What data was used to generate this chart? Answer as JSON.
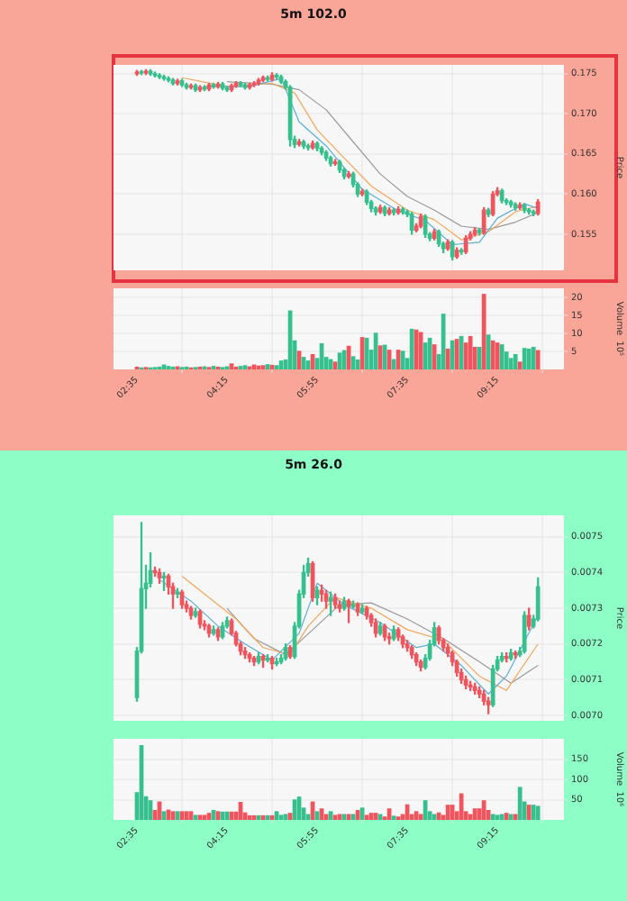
{
  "chart_data": [
    {
      "type": "candlestick",
      "title": "5m 102.0",
      "ylabel": "Price",
      "grid": true,
      "tick_labels": "y",
      "xlim": [
        2.15,
        10.48
      ],
      "xticks": [
        {
          "value": 2.5833,
          "label": null
        },
        {
          "value": 4.25,
          "label": null
        },
        {
          "value": 5.9167,
          "label": null
        },
        {
          "value": 7.5833,
          "label": null
        },
        {
          "value": 9.25,
          "label": null
        }
      ],
      "ylim": [
        0.1505,
        0.1761
      ],
      "yticks": [
        0.155,
        {
          "value": 0.16,
          "label": "0.160"
        },
        0.165,
        {
          "value": 0.17,
          "label": "0.170"
        },
        0.175
      ],
      "x": [
        2.5833,
        2.6667,
        2.75,
        2.8333,
        2.9167,
        3,
        3.0833,
        3.1667,
        3.25,
        3.3333,
        3.4167,
        3.5,
        3.5833,
        3.6667,
        3.75,
        3.8333,
        3.9167,
        4,
        4.0833,
        4.1667,
        4.25,
        4.3333,
        4.4167,
        4.5,
        4.5833,
        4.6667,
        4.75,
        4.8333,
        4.9167,
        5,
        5.0833,
        5.1667,
        5.25,
        5.3333,
        5.4167,
        5.5,
        5.5833,
        5.6667,
        5.75,
        5.8333,
        5.9167,
        6,
        6.0833,
        6.1667,
        6.25,
        6.3333,
        6.4167,
        6.5,
        6.5833,
        6.6667,
        6.75,
        6.8333,
        6.9167,
        7,
        7.0833,
        7.1667,
        7.25,
        7.3333,
        7.4167,
        7.5,
        7.5833,
        7.6667,
        7.75,
        7.8333,
        7.9167,
        8,
        8.0833,
        8.1667,
        8.25,
        8.3333,
        8.4167,
        8.5,
        8.5833,
        8.6667,
        8.75,
        8.8333,
        8.9167,
        9,
        9.0833,
        9.1667,
        9.25,
        9.3333,
        9.4167,
        9.5,
        9.5833,
        9.6667,
        9.75,
        9.8333,
        9.9167,
        10
      ],
      "ohlc": [
        [
          0.175,
          0.1754,
          0.1748,
          0.1752
        ],
        [
          0.1752,
          0.1754,
          0.1749,
          0.1751
        ],
        [
          0.1751,
          0.1755,
          0.1749,
          0.1753
        ],
        [
          0.1753,
          0.1755,
          0.1748,
          0.175
        ],
        [
          0.175,
          0.1752,
          0.1746,
          0.1748
        ],
        [
          0.1748,
          0.175,
          0.1744,
          0.1746
        ],
        [
          0.1746,
          0.1748,
          0.1742,
          0.1744
        ],
        [
          0.1744,
          0.1746,
          0.174,
          0.1742
        ],
        [
          0.1742,
          0.1744,
          0.1736,
          0.1738
        ],
        [
          0.1738,
          0.1743,
          0.1736,
          0.1741
        ],
        [
          0.1741,
          0.1743,
          0.1734,
          0.1736
        ],
        [
          0.1736,
          0.1738,
          0.1731,
          0.1733
        ],
        [
          0.1733,
          0.1737,
          0.1731,
          0.1735
        ],
        [
          0.1735,
          0.1737,
          0.1728,
          0.173
        ],
        [
          0.173,
          0.1735,
          0.1728,
          0.1733
        ],
        [
          0.1733,
          0.1735,
          0.1729,
          0.1731
        ],
        [
          0.1731,
          0.1738,
          0.1729,
          0.1736
        ],
        [
          0.1736,
          0.1738,
          0.1732,
          0.1734
        ],
        [
          0.1734,
          0.1739,
          0.1732,
          0.1737
        ],
        [
          0.1737,
          0.1739,
          0.173,
          0.1732
        ],
        [
          0.1732,
          0.1734,
          0.1728,
          0.173
        ],
        [
          0.173,
          0.1737,
          0.1728,
          0.1735
        ],
        [
          0.1735,
          0.174,
          0.1733,
          0.1738
        ],
        [
          0.1738,
          0.174,
          0.1734,
          0.1736
        ],
        [
          0.1736,
          0.1738,
          0.1731,
          0.1733
        ],
        [
          0.1733,
          0.1738,
          0.1731,
          0.1736
        ],
        [
          0.1736,
          0.174,
          0.1734,
          0.1738
        ],
        [
          0.1738,
          0.1744,
          0.1736,
          0.1742
        ],
        [
          0.1742,
          0.1747,
          0.174,
          0.1745
        ],
        [
          0.1745,
          0.1747,
          0.1741,
          0.1743
        ],
        [
          0.1743,
          0.1751,
          0.1741,
          0.1748
        ],
        [
          0.1748,
          0.175,
          0.1744,
          0.1746
        ],
        [
          0.1746,
          0.1748,
          0.1738,
          0.174
        ],
        [
          0.174,
          0.1742,
          0.1731,
          0.1733
        ],
        [
          0.1733,
          0.1735,
          0.166,
          0.1668
        ],
        [
          0.1668,
          0.1672,
          0.1658,
          0.1662
        ],
        [
          0.1662,
          0.1668,
          0.166,
          0.1665
        ],
        [
          0.1665,
          0.1667,
          0.1657,
          0.166
        ],
        [
          0.166,
          0.1662,
          0.1655,
          0.1658
        ],
        [
          0.1658,
          0.1666,
          0.1656,
          0.1663
        ],
        [
          0.1663,
          0.1665,
          0.1654,
          0.1657
        ],
        [
          0.1657,
          0.1659,
          0.1649,
          0.1652
        ],
        [
          0.1652,
          0.1654,
          0.1642,
          0.1645
        ],
        [
          0.1645,
          0.1647,
          0.1635,
          0.1638
        ],
        [
          0.1638,
          0.1643,
          0.1636,
          0.164
        ],
        [
          0.164,
          0.1642,
          0.1627,
          0.163
        ],
        [
          0.163,
          0.1632,
          0.1619,
          0.1622
        ],
        [
          0.1622,
          0.1628,
          0.162,
          0.1625
        ],
        [
          0.1625,
          0.1627,
          0.1609,
          0.1612
        ],
        [
          0.1612,
          0.1614,
          0.1597,
          0.16
        ],
        [
          0.16,
          0.1606,
          0.1598,
          0.1603
        ],
        [
          0.1603,
          0.1605,
          0.1587,
          0.159
        ],
        [
          0.159,
          0.1592,
          0.1578,
          0.1582
        ],
        [
          0.1582,
          0.1584,
          0.1574,
          0.1578
        ],
        [
          0.1578,
          0.1586,
          0.1576,
          0.1583
        ],
        [
          0.1583,
          0.1585,
          0.1573,
          0.1576
        ],
        [
          0.1576,
          0.1583,
          0.1574,
          0.158
        ],
        [
          0.158,
          0.1582,
          0.1574,
          0.1577
        ],
        [
          0.1577,
          0.1584,
          0.1575,
          0.1581
        ],
        [
          0.1581,
          0.1583,
          0.1575,
          0.1578
        ],
        [
          0.1578,
          0.158,
          0.1572,
          0.1575
        ],
        [
          0.1575,
          0.1577,
          0.155,
          0.1555
        ],
        [
          0.1555,
          0.1563,
          0.1553,
          0.156
        ],
        [
          0.156,
          0.1575,
          0.1558,
          0.1572
        ],
        [
          0.1572,
          0.1574,
          0.1546,
          0.155
        ],
        [
          0.155,
          0.1552,
          0.1542,
          0.1545
        ],
        [
          0.1545,
          0.1556,
          0.1543,
          0.1553
        ],
        [
          0.1553,
          0.1555,
          0.1535,
          0.1538
        ],
        [
          0.1538,
          0.154,
          0.1527,
          0.1532
        ],
        [
          0.1532,
          0.1543,
          0.153,
          0.154
        ],
        [
          0.154,
          0.1542,
          0.1518,
          0.1522
        ],
        [
          0.1522,
          0.1533,
          0.152,
          0.153
        ],
        [
          0.153,
          0.1532,
          0.1525,
          0.1528
        ],
        [
          0.1528,
          0.1548,
          0.1526,
          0.1545
        ],
        [
          0.1545,
          0.1553,
          0.1543,
          0.155
        ],
        [
          0.155,
          0.1558,
          0.1548,
          0.1555
        ],
        [
          0.1555,
          0.1557,
          0.1549,
          0.1552
        ],
        [
          0.1552,
          0.1583,
          0.155,
          0.158
        ],
        [
          0.158,
          0.1582,
          0.1572,
          0.1575
        ],
        [
          0.1575,
          0.1603,
          0.1573,
          0.16
        ],
        [
          0.16,
          0.1608,
          0.1598,
          0.1604
        ],
        [
          0.1604,
          0.1606,
          0.1589,
          0.1592
        ],
        [
          0.1592,
          0.1594,
          0.1587,
          0.159
        ],
        [
          0.159,
          0.1592,
          0.1584,
          0.1587
        ],
        [
          0.1587,
          0.1589,
          0.158,
          0.1583
        ],
        [
          0.1583,
          0.1589,
          0.1581,
          0.1586
        ],
        [
          0.1586,
          0.1588,
          0.1577,
          0.158
        ],
        [
          0.158,
          0.1582,
          0.1575,
          0.1578
        ],
        [
          0.1578,
          0.158,
          0.1573,
          0.1576
        ],
        [
          0.1576,
          0.1593,
          0.1574,
          0.159
        ]
      ],
      "colors": [
        "#f2545e",
        "#35c08e",
        "#f2545e",
        "#35c08e",
        "#35c08e",
        "#35c08e",
        "#35c08e",
        "#35c08e",
        "#35c08e",
        "#f2545e",
        "#35c08e",
        "#35c08e",
        "#f2545e",
        "#35c08e",
        "#f2545e",
        "#35c08e",
        "#f2545e",
        "#35c08e",
        "#f2545e",
        "#35c08e",
        "#35c08e",
        "#f2545e",
        "#f2545e",
        "#35c08e",
        "#35c08e",
        "#f2545e",
        "#f2545e",
        "#f2545e",
        "#f2545e",
        "#35c08e",
        "#f2545e",
        "#35c08e",
        "#35c08e",
        "#35c08e",
        "#35c08e",
        "#35c08e",
        "#f2545e",
        "#35c08e",
        "#35c08e",
        "#f2545e",
        "#35c08e",
        "#35c08e",
        "#35c08e",
        "#35c08e",
        "#f2545e",
        "#35c08e",
        "#35c08e",
        "#f2545e",
        "#35c08e",
        "#35c08e",
        "#f2545e",
        "#35c08e",
        "#35c08e",
        "#35c08e",
        "#f2545e",
        "#35c08e",
        "#f2545e",
        "#35c08e",
        "#f2545e",
        "#35c08e",
        "#35c08e",
        "#35c08e",
        "#f2545e",
        "#f2545e",
        "#35c08e",
        "#35c08e",
        "#f2545e",
        "#35c08e",
        "#35c08e",
        "#f2545e",
        "#35c08e",
        "#f2545e",
        "#35c08e",
        "#f2545e",
        "#f2545e",
        "#f2545e",
        "#35c08e",
        "#f2545e",
        "#35c08e",
        "#f2545e",
        "#f2545e",
        "#35c08e",
        "#35c08e",
        "#35c08e",
        "#35c08e",
        "#f2545e",
        "#35c08e",
        "#35c08e",
        "#35c08e",
        "#f2545e"
      ],
      "series": [
        {
          "type": "line",
          "color": "#5aaed6",
          "x": [
            3.8333,
            4.6667,
            5.25,
            5.5833,
            6.0833,
            6.75,
            7.4167,
            7.9167,
            8.4167,
            8.9167,
            9.25,
            9.75,
            10
          ],
          "values": [
            0.1734,
            0.1734,
            0.1744,
            0.169,
            0.166,
            0.1606,
            0.1579,
            0.1567,
            0.1537,
            0.154,
            0.157,
            0.1588,
            0.1582
          ]
        },
        {
          "type": "line",
          "color": "#f2a65a",
          "x": [
            3.4167,
            4.25,
            5.0833,
            5.5,
            5.9167,
            6.4167,
            6.9167,
            7.5833,
            8.0833,
            8.5833,
            9.0833,
            9.5833,
            10
          ],
          "values": [
            0.1745,
            0.1734,
            0.1738,
            0.1726,
            0.168,
            0.1645,
            0.161,
            0.158,
            0.1568,
            0.1543,
            0.1553,
            0.1578,
            0.1585
          ]
        },
        {
          "type": "line",
          "color": "#9a9a9a",
          "x": [
            4.25,
            5.0833,
            5.5833,
            6.0833,
            6.5833,
            7.0833,
            7.5833,
            8.0833,
            8.5833,
            9.0833,
            9.5833,
            10
          ],
          "values": [
            0.174,
            0.1737,
            0.173,
            0.1705,
            0.1665,
            0.1625,
            0.1597,
            0.158,
            0.156,
            0.1556,
            0.1565,
            0.1577
          ]
        }
      ]
    },
    {
      "type": "bar",
      "ylabel": "Volume  10⁵",
      "grid": true,
      "xlim": [
        2.15,
        10.48
      ],
      "xticks": [
        {
          "value": 2.5833,
          "label": "02:35"
        },
        {
          "value": 4.25,
          "label": "04:15"
        },
        {
          "value": 5.9167,
          "label": "05:55"
        },
        {
          "value": 7.5833,
          "label": "07:35"
        },
        {
          "value": 9.25,
          "label": "09:15"
        }
      ],
      "ylim": [
        0,
        22.5
      ],
      "yticks": [
        5,
        10,
        15,
        20
      ],
      "x": [
        2.5833,
        2.6667,
        2.75,
        2.8333,
        2.9167,
        3,
        3.0833,
        3.1667,
        3.25,
        3.3333,
        3.4167,
        3.5,
        3.5833,
        3.6667,
        3.75,
        3.8333,
        3.9167,
        4,
        4.0833,
        4.1667,
        4.25,
        4.3333,
        4.4167,
        4.5,
        4.5833,
        4.6667,
        4.75,
        4.8333,
        4.9167,
        5,
        5.0833,
        5.1667,
        5.25,
        5.3333,
        5.4167,
        5.5,
        5.5833,
        5.6667,
        5.75,
        5.8333,
        5.9167,
        6,
        6.0833,
        6.1667,
        6.25,
        6.3333,
        6.4167,
        6.5,
        6.5833,
        6.6667,
        6.75,
        6.8333,
        6.9167,
        7,
        7.0833,
        7.1667,
        7.25,
        7.3333,
        7.4167,
        7.5,
        7.5833,
        7.6667,
        7.75,
        7.8333,
        7.9167,
        8,
        8.0833,
        8.1667,
        8.25,
        8.3333,
        8.4167,
        8.5,
        8.5833,
        8.6667,
        8.75,
        8.8333,
        8.9167,
        9,
        9.0833,
        9.1667,
        9.25,
        9.3333,
        9.4167,
        9.5,
        9.5833,
        9.6667,
        9.75,
        9.8333,
        9.9167,
        10
      ],
      "values": [
        0.6,
        0.4,
        0.5,
        0.4,
        0.5,
        0.6,
        1.2,
        0.8,
        0.6,
        0.7,
        0.5,
        0.6,
        0.4,
        0.5,
        0.6,
        0.7,
        0.5,
        0.8,
        0.6,
        0.5,
        0.7,
        1.5,
        0.6,
        0.8,
        1.0,
        0.7,
        1.2,
        0.9,
        1.0,
        1.3,
        1.1,
        1.0,
        2.3,
        2.6,
        16.2,
        7.9,
        5,
        3.3,
        2.3,
        4.1,
        3,
        7.1,
        3.3,
        2.7,
        2,
        4.5,
        5.2,
        6.4,
        3.5,
        2.6,
        8.8,
        8.6,
        5.3,
        10,
        6.5,
        6.7,
        5.3,
        2.7,
        5.3,
        5,
        3,
        11.1,
        10.9,
        10.2,
        7.3,
        8.6,
        6.8,
        4.1,
        15.3,
        5.6,
        7.9,
        8.3,
        9.1,
        7.3,
        9.1,
        6.1,
        6.1,
        20.8,
        9.5,
        7.9,
        7.3,
        6.8,
        4.8,
        3,
        4.1,
        2,
        5.8,
        5.6,
        6.1,
        5.2
      ],
      "colors": [
        "#f2545e",
        "#35c08e",
        "#f2545e",
        "#35c08e",
        "#35c08e",
        "#35c08e",
        "#35c08e",
        "#35c08e",
        "#35c08e",
        "#f2545e",
        "#35c08e",
        "#35c08e",
        "#f2545e",
        "#35c08e",
        "#f2545e",
        "#35c08e",
        "#f2545e",
        "#35c08e",
        "#f2545e",
        "#35c08e",
        "#35c08e",
        "#f2545e",
        "#f2545e",
        "#35c08e",
        "#35c08e",
        "#f2545e",
        "#f2545e",
        "#f2545e",
        "#f2545e",
        "#35c08e",
        "#f2545e",
        "#35c08e",
        "#35c08e",
        "#35c08e",
        "#35c08e",
        "#35c08e",
        "#f2545e",
        "#35c08e",
        "#35c08e",
        "#f2545e",
        "#35c08e",
        "#35c08e",
        "#35c08e",
        "#35c08e",
        "#f2545e",
        "#35c08e",
        "#35c08e",
        "#f2545e",
        "#35c08e",
        "#35c08e",
        "#f2545e",
        "#35c08e",
        "#35c08e",
        "#35c08e",
        "#f2545e",
        "#35c08e",
        "#f2545e",
        "#35c08e",
        "#f2545e",
        "#35c08e",
        "#35c08e",
        "#35c08e",
        "#f2545e",
        "#f2545e",
        "#35c08e",
        "#35c08e",
        "#f2545e",
        "#35c08e",
        "#35c08e",
        "#f2545e",
        "#35c08e",
        "#f2545e",
        "#35c08e",
        "#f2545e",
        "#f2545e",
        "#f2545e",
        "#35c08e",
        "#f2545e",
        "#35c08e",
        "#f2545e",
        "#f2545e",
        "#35c08e",
        "#35c08e",
        "#35c08e",
        "#35c08e",
        "#f2545e",
        "#35c08e",
        "#35c08e",
        "#35c08e",
        "#f2545e"
      ]
    },
    {
      "type": "candlestick",
      "title": "5m 26.0",
      "ylabel": "Price",
      "grid": true,
      "tick_labels": "y",
      "xlim": [
        2.15,
        10.48
      ],
      "xticks": [
        {
          "value": 2.5833,
          "label": null
        },
        {
          "value": 4.25,
          "label": null
        },
        {
          "value": 5.9167,
          "label": null
        },
        {
          "value": 7.5833,
          "label": null
        },
        {
          "value": 9.25,
          "label": null
        }
      ],
      "ylim": [
        0.006985,
        0.00756
      ],
      "yticks": [
        {
          "value": 0.007,
          "label": "0.0070"
        },
        0.0071,
        0.0072,
        0.0073,
        0.0074,
        0.0075
      ],
      "x": [
        2.5833,
        2.6667,
        2.75,
        2.8333,
        2.9167,
        3,
        3.0833,
        3.1667,
        3.25,
        3.3333,
        3.4167,
        3.5,
        3.5833,
        3.6667,
        3.75,
        3.8333,
        3.9167,
        4,
        4.0833,
        4.1667,
        4.25,
        4.3333,
        4.4167,
        4.5,
        4.5833,
        4.6667,
        4.75,
        4.8333,
        4.9167,
        5,
        5.0833,
        5.1667,
        5.25,
        5.3333,
        5.4167,
        5.5,
        5.5833,
        5.6667,
        5.75,
        5.8333,
        5.9167,
        6,
        6.0833,
        6.1667,
        6.25,
        6.3333,
        6.4167,
        6.5,
        6.5833,
        6.6667,
        6.75,
        6.8333,
        6.9167,
        7,
        7.0833,
        7.1667,
        7.25,
        7.3333,
        7.4167,
        7.5,
        7.5833,
        7.6667,
        7.75,
        7.8333,
        7.9167,
        8,
        8.0833,
        8.1667,
        8.25,
        8.3333,
        8.4167,
        8.5,
        8.5833,
        8.6667,
        8.75,
        8.8333,
        8.9167,
        9,
        9.0833,
        9.1667,
        9.25,
        9.3333,
        9.4167,
        9.5,
        9.5833,
        9.6667,
        9.75,
        9.8333,
        9.9167,
        10
      ],
      "ohlc": [
        [
          0.00705,
          0.00719,
          0.00704,
          0.00718
        ],
        [
          0.00718,
          0.00754,
          0.007175,
          0.007355
        ],
        [
          0.007355,
          0.00742,
          0.0073,
          0.00737
        ],
        [
          0.00737,
          0.007455,
          0.00736,
          0.007405
        ],
        [
          0.007405,
          0.007415,
          0.00739,
          0.0074
        ],
        [
          0.0074,
          0.00741,
          0.00737,
          0.007385
        ],
        [
          0.007385,
          0.0074,
          0.00735,
          0.00739
        ],
        [
          0.00739,
          0.007395,
          0.00734,
          0.00736
        ],
        [
          0.00736,
          0.00737,
          0.0073,
          0.00734
        ],
        [
          0.00734,
          0.007355,
          0.00733,
          0.007345
        ],
        [
          0.007345,
          0.00735,
          0.0073,
          0.00731
        ],
        [
          0.00731,
          0.00732,
          0.00729,
          0.0073
        ],
        [
          0.0073,
          0.007305,
          0.00727,
          0.00728
        ],
        [
          0.00728,
          0.0073,
          0.007275,
          0.00729
        ],
        [
          0.00729,
          0.007295,
          0.007245,
          0.007255
        ],
        [
          0.007255,
          0.007265,
          0.00724,
          0.00725
        ],
        [
          0.00725,
          0.007255,
          0.00722,
          0.00723
        ],
        [
          0.00723,
          0.00725,
          0.007225,
          0.00724
        ],
        [
          0.00724,
          0.007245,
          0.00721,
          0.00722
        ],
        [
          0.00722,
          0.00726,
          0.007215,
          0.00725
        ],
        [
          0.00725,
          0.007275,
          0.007245,
          0.007265
        ],
        [
          0.007265,
          0.00727,
          0.007225,
          0.00723
        ],
        [
          0.00723,
          0.007235,
          0.007195,
          0.0072
        ],
        [
          0.0072,
          0.007205,
          0.00717,
          0.00718
        ],
        [
          0.00718,
          0.00719,
          0.00716,
          0.00717
        ],
        [
          0.00717,
          0.007175,
          0.00715,
          0.00716
        ],
        [
          0.00716,
          0.007165,
          0.00714,
          0.00715
        ],
        [
          0.00715,
          0.007175,
          0.007145,
          0.007165
        ],
        [
          0.007165,
          0.00717,
          0.007135,
          0.007155
        ],
        [
          0.007155,
          0.00717,
          0.00715,
          0.00716
        ],
        [
          0.00716,
          0.007165,
          0.00713,
          0.007145
        ],
        [
          0.007145,
          0.00716,
          0.00714,
          0.00715
        ],
        [
          0.00715,
          0.00717,
          0.007145,
          0.00716
        ],
        [
          0.00716,
          0.0072,
          0.007155,
          0.00719
        ],
        [
          0.00719,
          0.007195,
          0.00716,
          0.007165
        ],
        [
          0.007165,
          0.00726,
          0.00716,
          0.00725
        ],
        [
          0.00725,
          0.00735,
          0.007245,
          0.00734
        ],
        [
          0.00734,
          0.00742,
          0.00733,
          0.0074
        ],
        [
          0.0074,
          0.00744,
          0.00739,
          0.007425
        ],
        [
          0.007425,
          0.00743,
          0.00732,
          0.00733
        ],
        [
          0.00733,
          0.00736,
          0.00731,
          0.00735
        ],
        [
          0.00735,
          0.007365,
          0.00732,
          0.00734
        ],
        [
          0.00734,
          0.00735,
          0.0073,
          0.00732
        ],
        [
          0.00732,
          0.007345,
          0.00728,
          0.00733
        ],
        [
          0.00733,
          0.00734,
          0.0073,
          0.00731
        ],
        [
          0.00731,
          0.00732,
          0.00729,
          0.0073
        ],
        [
          0.0073,
          0.00733,
          0.007295,
          0.00732
        ],
        [
          0.00732,
          0.007325,
          0.00726,
          0.007305
        ],
        [
          0.007305,
          0.00732,
          0.0073,
          0.00731
        ],
        [
          0.00731,
          0.007315,
          0.00728,
          0.00729
        ],
        [
          0.00729,
          0.00731,
          0.007285,
          0.0073
        ],
        [
          0.0073,
          0.007305,
          0.00727,
          0.00728
        ],
        [
          0.00728,
          0.007285,
          0.00725,
          0.00726
        ],
        [
          0.00726,
          0.00727,
          0.00722,
          0.00723
        ],
        [
          0.00723,
          0.00726,
          0.007225,
          0.00725
        ],
        [
          0.00725,
          0.007255,
          0.00721,
          0.00722
        ],
        [
          0.00722,
          0.00723,
          0.0072,
          0.007215
        ],
        [
          0.007215,
          0.00725,
          0.00721,
          0.00724
        ],
        [
          0.00724,
          0.007245,
          0.00721,
          0.00722
        ],
        [
          0.00722,
          0.007225,
          0.00719,
          0.0072
        ],
        [
          0.0072,
          0.00721,
          0.00718,
          0.00719
        ],
        [
          0.00719,
          0.007195,
          0.00716,
          0.00717
        ],
        [
          0.00717,
          0.007175,
          0.00714,
          0.00715
        ],
        [
          0.00715,
          0.007155,
          0.007125,
          0.007135
        ],
        [
          0.007135,
          0.00717,
          0.00713,
          0.00716
        ],
        [
          0.00716,
          0.00721,
          0.007155,
          0.0072
        ],
        [
          0.0072,
          0.00726,
          0.007195,
          0.007245
        ],
        [
          0.007245,
          0.00725,
          0.0072,
          0.00721
        ],
        [
          0.00721,
          0.007215,
          0.00718,
          0.00719
        ],
        [
          0.00719,
          0.0072,
          0.007165,
          0.007175
        ],
        [
          0.007175,
          0.00718,
          0.00714,
          0.00715
        ],
        [
          0.00715,
          0.007155,
          0.00711,
          0.00712
        ],
        [
          0.00712,
          0.00713,
          0.00709,
          0.0071
        ],
        [
          0.0071,
          0.00711,
          0.007075,
          0.007085
        ],
        [
          0.007085,
          0.007095,
          0.00707,
          0.00708
        ],
        [
          0.00708,
          0.00709,
          0.00706,
          0.00707
        ],
        [
          0.00707,
          0.00708,
          0.00705,
          0.00706
        ],
        [
          0.00706,
          0.00707,
          0.00703,
          0.00704
        ],
        [
          0.00704,
          0.00705,
          0.007005,
          0.00703
        ],
        [
          0.00703,
          0.00714,
          0.007025,
          0.00713
        ],
        [
          0.00713,
          0.007165,
          0.007125,
          0.007155
        ],
        [
          0.007155,
          0.007175,
          0.00715,
          0.007165
        ],
        [
          0.007165,
          0.007175,
          0.00715,
          0.00716
        ],
        [
          0.00716,
          0.007185,
          0.007155,
          0.007175
        ],
        [
          0.007175,
          0.00718,
          0.00716,
          0.00717
        ],
        [
          0.00717,
          0.00719,
          0.007165,
          0.00718
        ],
        [
          0.00718,
          0.00729,
          0.007175,
          0.00728
        ],
        [
          0.00728,
          0.0073,
          0.00724,
          0.00725
        ],
        [
          0.00725,
          0.00728,
          0.007245,
          0.00727
        ],
        [
          0.00727,
          0.007385,
          0.007265,
          0.00736
        ]
      ],
      "colors": [
        "#35c08e",
        "#35c08e",
        "#35c08e",
        "#35c08e",
        "#f2545e",
        "#f2545e",
        "#35c08e",
        "#f2545e",
        "#f2545e",
        "#35c08e",
        "#f2545e",
        "#f2545e",
        "#f2545e",
        "#35c08e",
        "#f2545e",
        "#f2545e",
        "#f2545e",
        "#35c08e",
        "#f2545e",
        "#35c08e",
        "#35c08e",
        "#f2545e",
        "#f2545e",
        "#f2545e",
        "#f2545e",
        "#f2545e",
        "#f2545e",
        "#35c08e",
        "#f2545e",
        "#35c08e",
        "#f2545e",
        "#35c08e",
        "#35c08e",
        "#35c08e",
        "#f2545e",
        "#35c08e",
        "#35c08e",
        "#35c08e",
        "#35c08e",
        "#f2545e",
        "#35c08e",
        "#f2545e",
        "#f2545e",
        "#35c08e",
        "#f2545e",
        "#f2545e",
        "#35c08e",
        "#f2545e",
        "#35c08e",
        "#f2545e",
        "#35c08e",
        "#f2545e",
        "#f2545e",
        "#f2545e",
        "#35c08e",
        "#f2545e",
        "#f2545e",
        "#35c08e",
        "#f2545e",
        "#f2545e",
        "#f2545e",
        "#f2545e",
        "#f2545e",
        "#f2545e",
        "#35c08e",
        "#35c08e",
        "#35c08e",
        "#f2545e",
        "#f2545e",
        "#f2545e",
        "#f2545e",
        "#f2545e",
        "#f2545e",
        "#f2545e",
        "#f2545e",
        "#f2545e",
        "#f2545e",
        "#f2545e",
        "#f2545e",
        "#35c08e",
        "#35c08e",
        "#35c08e",
        "#f2545e",
        "#35c08e",
        "#f2545e",
        "#35c08e",
        "#35c08e",
        "#f2545e",
        "#35c08e",
        "#35c08e"
      ],
      "series": [
        {
          "type": "line",
          "color": "#5aaed6",
          "x": [
            3,
            3.5833,
            4.0833,
            4.5833,
            5.0833,
            5.5833,
            5.9167,
            6.4167,
            7.0833,
            7.75,
            8.0833,
            8.5833,
            9.0833,
            9.4167,
            10
          ],
          "values": [
            0.00738,
            0.00732,
            0.00725,
            0.0072,
            0.007155,
            0.00723,
            0.00737,
            0.00731,
            0.00726,
            0.00719,
            0.0072,
            0.00714,
            0.00706,
            0.00711,
            0.00728
          ]
        },
        {
          "type": "line",
          "color": "#f2a65a",
          "x": [
            3.4167,
            3.9167,
            4.4167,
            4.9167,
            5.4167,
            5.75,
            6.25,
            6.9167,
            7.5833,
            8.25,
            8.9167,
            9.4167,
            10
          ],
          "values": [
            0.00739,
            0.00733,
            0.00727,
            0.00719,
            0.00717,
            0.00725,
            0.00733,
            0.0073,
            0.00724,
            0.00721,
            0.00711,
            0.00707,
            0.0072
          ]
        },
        {
          "type": "line",
          "color": "#9a9a9a",
          "x": [
            4.25,
            4.75,
            5.3333,
            6.3333,
            6.9167,
            7.5833,
            8.25,
            8.9167,
            9.5,
            10
          ],
          "values": [
            0.0073,
            0.007215,
            0.00717,
            0.00731,
            0.007315,
            0.00727,
            0.007215,
            0.00715,
            0.00709,
            0.00714
          ]
        }
      ]
    },
    {
      "type": "bar",
      "ylabel": "Volume  10⁶",
      "grid": true,
      "xlim": [
        2.15,
        10.48
      ],
      "xticks": [
        {
          "value": 2.5833,
          "label": "02:35"
        },
        {
          "value": 4.25,
          "label": "04:15"
        },
        {
          "value": 5.9167,
          "label": "05:55"
        },
        {
          "value": 7.5833,
          "label": "07:35"
        },
        {
          "value": 9.25,
          "label": "09:15"
        }
      ],
      "ylim": [
        0,
        200
      ],
      "yticks": [
        50,
        100,
        150
      ],
      "x": [
        2.5833,
        2.6667,
        2.75,
        2.8333,
        2.9167,
        3,
        3.0833,
        3.1667,
        3.25,
        3.3333,
        3.4167,
        3.5,
        3.5833,
        3.6667,
        3.75,
        3.8333,
        3.9167,
        4,
        4.0833,
        4.1667,
        4.25,
        4.3333,
        4.4167,
        4.5,
        4.5833,
        4.6667,
        4.75,
        4.8333,
        4.9167,
        5,
        5.0833,
        5.1667,
        5.25,
        5.3333,
        5.4167,
        5.5,
        5.5833,
        5.6667,
        5.75,
        5.8333,
        5.9167,
        6,
        6.0833,
        6.1667,
        6.25,
        6.3333,
        6.4167,
        6.5,
        6.5833,
        6.6667,
        6.75,
        6.8333,
        6.9167,
        7,
        7.0833,
        7.1667,
        7.25,
        7.3333,
        7.4167,
        7.5,
        7.5833,
        7.6667,
        7.75,
        7.8333,
        7.9167,
        8,
        8.0833,
        8.1667,
        8.25,
        8.3333,
        8.4167,
        8.5,
        8.5833,
        8.6667,
        8.75,
        8.8333,
        8.9167,
        9,
        9.0833,
        9.1667,
        9.25,
        9.3333,
        9.4167,
        9.5,
        9.5833,
        9.6667,
        9.75,
        9.8333,
        9.9167,
        10
      ],
      "values": [
        67,
        183,
        57,
        47,
        23,
        44,
        20,
        24,
        20,
        20,
        20,
        20,
        20,
        11,
        11,
        11,
        16,
        23,
        20,
        19,
        19,
        19,
        19,
        43,
        17,
        10,
        10,
        10,
        10,
        10,
        10,
        20,
        11,
        13,
        16,
        49,
        56,
        29,
        13,
        44,
        20,
        27,
        13,
        20,
        11,
        13,
        13,
        13,
        13,
        23,
        29,
        11,
        16,
        16,
        13,
        7,
        27,
        9,
        7,
        13,
        37,
        13,
        20,
        13,
        47,
        20,
        13,
        17,
        11,
        36,
        36,
        20,
        64,
        20,
        13,
        27,
        27,
        47,
        23,
        13,
        11,
        13,
        16,
        13,
        13,
        80,
        44,
        36,
        36,
        33
      ],
      "colors": [
        "#35c08e",
        "#35c08e",
        "#35c08e",
        "#35c08e",
        "#f2545e",
        "#f2545e",
        "#35c08e",
        "#f2545e",
        "#f2545e",
        "#35c08e",
        "#f2545e",
        "#f2545e",
        "#f2545e",
        "#35c08e",
        "#f2545e",
        "#f2545e",
        "#f2545e",
        "#35c08e",
        "#f2545e",
        "#35c08e",
        "#35c08e",
        "#f2545e",
        "#f2545e",
        "#f2545e",
        "#f2545e",
        "#f2545e",
        "#f2545e",
        "#35c08e",
        "#f2545e",
        "#35c08e",
        "#f2545e",
        "#35c08e",
        "#35c08e",
        "#35c08e",
        "#f2545e",
        "#35c08e",
        "#35c08e",
        "#35c08e",
        "#35c08e",
        "#f2545e",
        "#35c08e",
        "#f2545e",
        "#f2545e",
        "#35c08e",
        "#f2545e",
        "#f2545e",
        "#35c08e",
        "#f2545e",
        "#35c08e",
        "#f2545e",
        "#35c08e",
        "#f2545e",
        "#f2545e",
        "#f2545e",
        "#35c08e",
        "#f2545e",
        "#f2545e",
        "#35c08e",
        "#f2545e",
        "#f2545e",
        "#f2545e",
        "#f2545e",
        "#f2545e",
        "#f2545e",
        "#35c08e",
        "#35c08e",
        "#35c08e",
        "#f2545e",
        "#f2545e",
        "#f2545e",
        "#f2545e",
        "#f2545e",
        "#f2545e",
        "#f2545e",
        "#f2545e",
        "#f2545e",
        "#f2545e",
        "#f2545e",
        "#f2545e",
        "#35c08e",
        "#35c08e",
        "#35c08e",
        "#f2545e",
        "#35c08e",
        "#f2545e",
        "#35c08e",
        "#35c08e",
        "#f2545e",
        "#35c08e",
        "#35c08e"
      ]
    }
  ]
}
